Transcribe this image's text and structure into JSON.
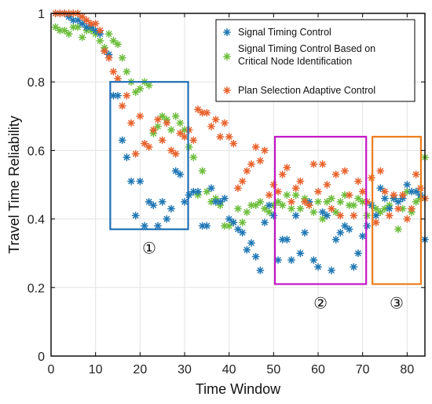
{
  "chart_data": {
    "type": "scatter",
    "xlabel": "Time Window",
    "ylabel": "Travel Time Reliability",
    "xlim": [
      0,
      84
    ],
    "ylim": [
      0,
      1
    ],
    "xticks": [
      "0",
      "10",
      "20",
      "30",
      "40",
      "50",
      "60",
      "70",
      "80"
    ],
    "yticks": [
      "0",
      "0.2",
      "0.4",
      "0.6",
      "0.8",
      "1"
    ],
    "grid": true,
    "legend_position": "top-right",
    "series": [
      {
        "name": "Signal Timing Control",
        "color": "#1f77b4",
        "x": [
          1,
          2,
          3,
          4,
          5,
          6,
          7,
          8,
          9,
          10,
          11,
          12,
          13,
          14,
          15,
          16,
          17,
          18,
          19,
          20,
          21,
          22,
          23,
          24,
          25,
          26,
          27,
          28,
          29,
          30,
          31,
          32,
          33,
          34,
          35,
          36,
          37,
          38,
          39,
          40,
          41,
          42,
          43,
          44,
          45,
          46,
          47,
          48,
          49,
          50,
          51,
          52,
          53,
          54,
          55,
          56,
          57,
          58,
          59,
          60,
          61,
          62,
          63,
          64,
          65,
          66,
          67,
          68,
          69,
          70,
          71,
          72,
          73,
          74,
          75,
          76,
          77,
          78,
          79,
          80,
          81,
          82,
          83,
          84
        ],
        "y": [
          1.0,
          1.0,
          1.0,
          0.99,
          0.98,
          0.98,
          0.97,
          0.96,
          0.96,
          0.95,
          0.94,
          0.89,
          0.88,
          0.76,
          0.76,
          0.63,
          0.58,
          0.51,
          0.41,
          0.51,
          0.38,
          0.45,
          0.44,
          0.38,
          0.45,
          0.4,
          0.43,
          0.54,
          0.53,
          0.45,
          0.47,
          0.48,
          0.48,
          0.38,
          0.38,
          0.49,
          0.45,
          0.45,
          0.46,
          0.4,
          0.39,
          0.37,
          0.36,
          0.31,
          0.33,
          0.29,
          0.25,
          0.39,
          0.44,
          0.41,
          0.28,
          0.34,
          0.34,
          0.28,
          0.41,
          0.3,
          0.36,
          0.45,
          0.28,
          0.26,
          0.42,
          0.41,
          0.25,
          0.34,
          0.36,
          0.38,
          0.37,
          0.26,
          0.3,
          0.35,
          0.38,
          0.44,
          0.41,
          0.49,
          0.46,
          0.43,
          0.46,
          0.45,
          0.46,
          0.5,
          0.48,
          0.48,
          0.47,
          0.34
        ]
      },
      {
        "name": "Signal Timing Control Based on Critical Node Identification",
        "color": "#6dbe3c",
        "x": [
          1,
          2,
          3,
          4,
          5,
          6,
          7,
          8,
          9,
          10,
          11,
          12,
          13,
          14,
          15,
          16,
          17,
          18,
          19,
          20,
          21,
          22,
          23,
          24,
          25,
          26,
          27,
          28,
          29,
          30,
          31,
          32,
          33,
          34,
          35,
          36,
          37,
          38,
          39,
          40,
          41,
          42,
          43,
          44,
          45,
          46,
          47,
          48,
          49,
          50,
          51,
          52,
          53,
          54,
          55,
          56,
          57,
          58,
          59,
          60,
          61,
          62,
          63,
          64,
          65,
          66,
          67,
          68,
          69,
          70,
          71,
          72,
          73,
          74,
          75,
          76,
          77,
          78,
          79,
          80,
          81,
          82,
          83,
          84
        ],
        "y": [
          0.96,
          0.95,
          0.95,
          0.94,
          0.96,
          0.96,
          0.93,
          0.95,
          0.95,
          0.94,
          0.92,
          0.9,
          0.94,
          0.92,
          0.91,
          0.87,
          0.83,
          0.8,
          0.77,
          0.78,
          0.8,
          0.79,
          0.65,
          0.67,
          0.7,
          0.69,
          0.66,
          0.7,
          0.68,
          0.66,
          0.61,
          0.58,
          0.47,
          0.54,
          0.48,
          0.45,
          0.46,
          0.44,
          0.38,
          0.38,
          0.39,
          0.43,
          0.39,
          0.42,
          0.44,
          0.44,
          0.45,
          0.43,
          0.42,
          0.44,
          0.45,
          0.44,
          0.47,
          0.43,
          0.47,
          0.43,
          0.46,
          0.44,
          0.42,
          0.45,
          0.4,
          0.45,
          0.46,
          0.42,
          0.45,
          0.47,
          0.44,
          0.44,
          0.46,
          0.45,
          0.41,
          0.44,
          0.43,
          0.42,
          0.43,
          0.44,
          0.46,
          0.37,
          0.43,
          0.48,
          0.42,
          0.45,
          0.46,
          0.58
        ]
      },
      {
        "name": "Plan Selection Adaptive Control",
        "color": "#e8622c",
        "x": [
          1,
          2,
          3,
          4,
          5,
          6,
          7,
          8,
          9,
          10,
          11,
          12,
          13,
          14,
          15,
          16,
          17,
          18,
          19,
          20,
          21,
          22,
          23,
          24,
          25,
          26,
          27,
          28,
          29,
          30,
          31,
          32,
          33,
          34,
          35,
          36,
          37,
          38,
          39,
          40,
          41,
          42,
          43,
          44,
          45,
          46,
          47,
          48,
          49,
          50,
          51,
          52,
          53,
          54,
          55,
          56,
          57,
          58,
          59,
          60,
          61,
          62,
          63,
          64,
          65,
          66,
          67,
          68,
          69,
          70,
          71,
          72,
          73,
          74,
          75,
          76,
          77,
          78,
          79,
          80,
          81,
          82,
          83,
          84
        ],
        "y": [
          1.0,
          1.0,
          1.0,
          1.0,
          1.0,
          1.0,
          0.99,
          0.98,
          0.97,
          0.97,
          0.95,
          0.89,
          0.87,
          0.83,
          0.81,
          0.73,
          0.76,
          0.68,
          0.59,
          0.7,
          0.62,
          0.61,
          0.66,
          0.69,
          0.63,
          0.68,
          0.6,
          0.59,
          0.65,
          0.64,
          0.66,
          0.63,
          0.72,
          0.71,
          0.71,
          0.67,
          0.69,
          0.64,
          0.68,
          0.64,
          0.62,
          0.49,
          0.51,
          0.54,
          0.56,
          0.61,
          0.57,
          0.6,
          0.47,
          0.5,
          0.48,
          0.53,
          0.55,
          0.45,
          0.49,
          0.51,
          0.45,
          0.44,
          0.56,
          0.48,
          0.56,
          0.5,
          0.43,
          0.53,
          0.41,
          0.54,
          0.47,
          0.41,
          0.51,
          0.48,
          0.45,
          0.52,
          0.39,
          0.54,
          0.48,
          0.41,
          0.47,
          0.43,
          0.47,
          0.4,
          0.43,
          0.53,
          0.49,
          0.46
        ]
      }
    ],
    "regions": [
      {
        "label": "①",
        "color": "#1f6fb4",
        "x_start": 13.3,
        "x_end": 30.8,
        "y_low": 0.37,
        "y_high": 0.8
      },
      {
        "label": "②",
        "color": "#c417c4",
        "x_start": 50.3,
        "x_end": 70.8,
        "y_low": 0.21,
        "y_high": 0.64
      },
      {
        "label": "③",
        "color": "#ed7d1b",
        "x_start": 72.2,
        "x_end": 83.1,
        "y_low": 0.21,
        "y_high": 0.64
      }
    ]
  }
}
